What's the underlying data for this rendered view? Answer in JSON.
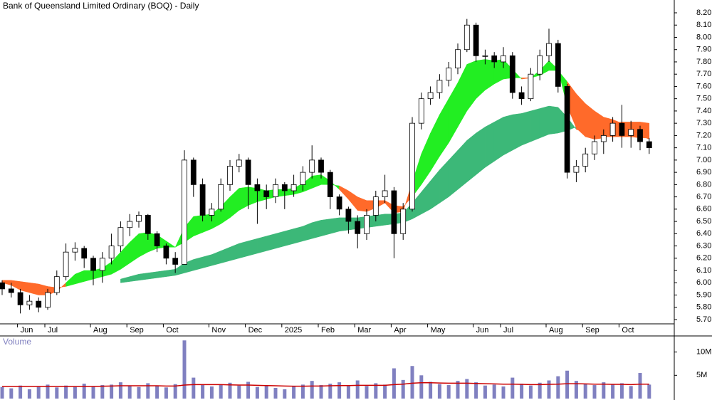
{
  "chart_data": [
    {
      "type": "candlestick",
      "title": "Bank of Queensland Limited Ordinary (BOQ) - Daily",
      "categories": [
        null,
        null,
        "Jun",
        null,
        null,
        "Jul",
        null,
        null,
        null,
        null,
        "Aug",
        null,
        null,
        null,
        "Sep",
        null,
        null,
        null,
        "Oct",
        null,
        null,
        null,
        null,
        "Nov",
        null,
        null,
        null,
        "Dec",
        null,
        null,
        null,
        "2025",
        null,
        null,
        null,
        "Feb",
        null,
        null,
        null,
        "Mar",
        null,
        null,
        null,
        "Apr",
        null,
        null,
        null,
        "May",
        null,
        null,
        null,
        null,
        "Jun",
        null,
        null,
        "Jul",
        null,
        null,
        null,
        null,
        "Aug",
        null,
        null,
        null,
        "Sep",
        null,
        null,
        null,
        "Oct",
        null,
        null,
        null
      ],
      "open": [
        6.0,
        5.95,
        5.92,
        5.82,
        5.85,
        5.8,
        5.92,
        6.05,
        6.25,
        6.28,
        6.2,
        6.1,
        6.2,
        6.3,
        6.45,
        6.5,
        6.55,
        6.4,
        6.3,
        6.2,
        6.15,
        7.0,
        6.8,
        6.55,
        6.6,
        6.8,
        6.95,
        7.0,
        6.8,
        6.75,
        6.7,
        6.8,
        6.75,
        6.8,
        6.9,
        7.0,
        6.9,
        6.7,
        6.6,
        6.5,
        6.4,
        6.55,
        6.7,
        6.75,
        6.4,
        6.6,
        7.3,
        7.5,
        7.55,
        7.65,
        7.75,
        7.9,
        8.1,
        7.85,
        7.85,
        7.8,
        7.85,
        7.55,
        7.5,
        7.7,
        7.85,
        7.95,
        7.6,
        6.9,
        6.95,
        7.05,
        7.15,
        7.2,
        7.3,
        7.2,
        7.25,
        7.15
      ],
      "high": [
        6.02,
        6.0,
        5.95,
        5.9,
        5.88,
        5.95,
        6.1,
        6.32,
        6.33,
        6.3,
        6.22,
        6.25,
        6.4,
        6.5,
        6.56,
        6.58,
        6.56,
        6.42,
        6.32,
        6.25,
        7.08,
        7.02,
        6.85,
        6.65,
        6.85,
        7.0,
        7.05,
        7.02,
        6.85,
        6.8,
        6.85,
        6.82,
        6.88,
        6.95,
        7.12,
        7.02,
        6.92,
        6.72,
        6.62,
        6.55,
        6.6,
        6.75,
        6.88,
        6.78,
        6.65,
        7.35,
        7.55,
        7.6,
        7.7,
        7.8,
        7.95,
        8.15,
        8.12,
        7.9,
        7.88,
        7.92,
        7.88,
        7.6,
        7.75,
        7.9,
        8.07,
        7.98,
        7.62,
        7.0,
        7.1,
        7.2,
        7.25,
        7.35,
        7.45,
        7.32,
        7.28,
        7.18
      ],
      "low": [
        5.9,
        5.88,
        5.75,
        5.78,
        5.76,
        5.78,
        5.9,
        6.02,
        6.18,
        6.12,
        5.98,
        6.0,
        6.15,
        6.25,
        6.38,
        6.45,
        6.35,
        6.25,
        6.15,
        6.08,
        6.15,
        6.7,
        6.5,
        6.5,
        6.58,
        6.75,
        6.9,
        6.6,
        6.48,
        6.6,
        6.65,
        6.6,
        6.7,
        6.75,
        6.85,
        6.85,
        6.6,
        6.55,
        6.4,
        6.28,
        6.35,
        6.5,
        6.65,
        6.2,
        6.35,
        6.58,
        7.25,
        7.45,
        7.5,
        7.6,
        7.7,
        7.88,
        7.8,
        7.78,
        7.75,
        7.75,
        7.5,
        7.45,
        7.48,
        7.65,
        7.8,
        7.55,
        6.85,
        6.82,
        6.9,
        7.0,
        7.05,
        7.15,
        7.1,
        7.1,
        7.08,
        7.05
      ],
      "close": [
        5.95,
        5.92,
        5.82,
        5.85,
        5.8,
        5.92,
        6.05,
        6.25,
        6.28,
        6.2,
        6.1,
        6.2,
        6.3,
        6.45,
        6.5,
        6.55,
        6.4,
        6.3,
        6.2,
        6.15,
        7.0,
        6.8,
        6.55,
        6.6,
        6.8,
        6.95,
        7.0,
        6.8,
        6.75,
        6.7,
        6.8,
        6.75,
        6.8,
        6.9,
        7.0,
        6.9,
        6.7,
        6.6,
        6.5,
        6.4,
        6.55,
        6.7,
        6.75,
        6.4,
        6.6,
        7.3,
        7.5,
        7.55,
        7.65,
        7.75,
        7.9,
        8.1,
        7.85,
        7.85,
        7.8,
        7.85,
        7.55,
        7.5,
        7.7,
        7.85,
        7.95,
        7.6,
        6.9,
        6.95,
        7.05,
        7.15,
        7.2,
        7.3,
        7.2,
        7.25,
        7.15,
        7.1
      ],
      "up_color": "#ffffff",
      "down_color": "#000000",
      "ribbons": [
        {
          "up_color": "#3cb878",
          "down_color": "#ff6a2a",
          "fast": [
            null,
            null,
            null,
            null,
            null,
            null,
            null,
            null,
            null,
            null,
            null,
            null,
            null,
            6.03,
            6.05,
            6.07,
            6.08,
            6.09,
            6.1,
            6.11,
            6.16,
            6.19,
            6.21,
            6.23,
            6.26,
            6.29,
            6.32,
            6.34,
            6.36,
            6.38,
            6.4,
            6.42,
            6.44,
            6.46,
            6.49,
            6.51,
            6.52,
            6.53,
            6.53,
            6.53,
            6.54,
            6.55,
            6.56,
            6.56,
            6.57,
            6.65,
            6.74,
            6.83,
            6.92,
            7.0,
            7.08,
            7.16,
            7.22,
            7.27,
            7.31,
            7.35,
            7.37,
            7.38,
            7.4,
            7.42,
            7.44,
            7.43,
            7.35,
            7.25,
            7.22,
            7.2,
            7.19,
            7.19,
            7.19,
            7.19,
            7.18,
            7.18
          ],
          "slow": [
            null,
            null,
            null,
            null,
            null,
            null,
            null,
            null,
            null,
            null,
            null,
            null,
            null,
            6.0,
            6.01,
            6.02,
            6.03,
            6.04,
            6.05,
            6.06,
            6.08,
            6.1,
            6.12,
            6.14,
            6.16,
            6.18,
            6.2,
            6.22,
            6.24,
            6.26,
            6.28,
            6.3,
            6.32,
            6.34,
            6.36,
            6.38,
            6.4,
            6.42,
            6.43,
            6.44,
            6.45,
            6.46,
            6.47,
            6.48,
            6.49,
            6.52,
            6.56,
            6.6,
            6.65,
            6.7,
            6.76,
            6.82,
            6.88,
            6.94,
            6.99,
            7.04,
            7.08,
            7.12,
            7.15,
            7.18,
            7.21,
            7.22,
            7.24,
            7.27,
            7.28,
            7.29,
            7.3,
            7.3,
            7.31,
            7.31,
            7.31,
            7.3
          ]
        },
        {
          "up_color": "#22ee22",
          "down_color": "#ff6a2a",
          "fast": [
            6.0,
            5.98,
            5.94,
            5.92,
            5.9,
            5.9,
            5.93,
            6.0,
            6.07,
            6.1,
            6.1,
            6.12,
            6.17,
            6.25,
            6.33,
            6.4,
            6.41,
            6.39,
            6.34,
            6.29,
            6.45,
            6.54,
            6.55,
            6.56,
            6.62,
            6.7,
            6.77,
            6.78,
            6.77,
            6.75,
            6.76,
            6.76,
            6.77,
            6.81,
            6.87,
            6.88,
            6.83,
            6.76,
            6.68,
            6.59,
            6.58,
            6.61,
            6.65,
            6.57,
            6.58,
            6.82,
            7.05,
            7.22,
            7.37,
            7.5,
            7.63,
            7.78,
            7.81,
            7.82,
            7.81,
            7.82,
            7.74,
            7.66,
            7.67,
            7.73,
            7.81,
            7.74,
            7.44,
            7.26,
            7.19,
            7.17,
            7.18,
            7.22,
            7.21,
            7.22,
            7.2,
            7.17
          ],
          "slow": [
            6.02,
            6.02,
            6.01,
            6.0,
            5.99,
            5.97,
            5.96,
            5.97,
            5.99,
            6.01,
            6.03,
            6.05,
            6.07,
            6.11,
            6.16,
            6.21,
            6.25,
            6.28,
            6.29,
            6.29,
            6.33,
            6.38,
            6.41,
            6.44,
            6.48,
            6.53,
            6.59,
            6.63,
            6.66,
            6.68,
            6.7,
            6.71,
            6.72,
            6.74,
            6.77,
            6.8,
            6.8,
            6.79,
            6.75,
            6.7,
            6.67,
            6.67,
            6.67,
            6.63,
            6.62,
            6.7,
            6.8,
            6.91,
            7.03,
            7.14,
            7.27,
            7.4,
            7.5,
            7.57,
            7.62,
            7.66,
            7.67,
            7.67,
            7.67,
            7.69,
            7.73,
            7.73,
            7.64,
            7.54,
            7.46,
            7.4,
            7.35,
            7.33,
            7.3,
            7.28,
            7.26,
            7.23
          ]
        }
      ],
      "ylim": [
        5.7,
        8.2
      ],
      "yticks": [
        {
          "value": 5.7,
          "label": "5.70"
        },
        {
          "value": 5.8,
          "label": "5.80"
        },
        {
          "value": 5.9,
          "label": "5.90"
        },
        {
          "value": 6.0,
          "label": "6.00"
        },
        {
          "value": 6.1,
          "label": "6.10"
        },
        {
          "value": 6.2,
          "label": "6.20"
        },
        {
          "value": 6.3,
          "label": "6.30"
        },
        {
          "value": 6.4,
          "label": "6.40"
        },
        {
          "value": 6.5,
          "label": "6.50"
        },
        {
          "value": 6.6,
          "label": "6.60"
        },
        {
          "value": 6.7,
          "label": "6.70"
        },
        {
          "value": 6.8,
          "label": "6.80"
        },
        {
          "value": 6.9,
          "label": "6.90"
        },
        {
          "value": 7.0,
          "label": "7.00"
        },
        {
          "value": 7.1,
          "label": "7.10"
        },
        {
          "value": 7.2,
          "label": "7.20"
        },
        {
          "value": 7.3,
          "label": "7.30"
        },
        {
          "value": 7.4,
          "label": "7.40"
        },
        {
          "value": 7.5,
          "label": "7.50"
        },
        {
          "value": 7.6,
          "label": "7.60"
        },
        {
          "value": 7.7,
          "label": "7.70"
        },
        {
          "value": 7.8,
          "label": "7.80"
        },
        {
          "value": 7.9,
          "label": "7.90"
        },
        {
          "value": 8.0,
          "label": "8.00"
        },
        {
          "value": 8.1,
          "label": "8.10"
        },
        {
          "value": 8.2,
          "label": "8.20"
        }
      ]
    },
    {
      "type": "bar",
      "title": "Volume",
      "color": "#8080c0",
      "ma_color": "#cc0000",
      "values": [
        2500000,
        2200000,
        2800000,
        2000000,
        2600000,
        3000000,
        2400000,
        2800000,
        2500000,
        3200000,
        2600000,
        2900000,
        3000000,
        3500000,
        2700000,
        2500000,
        3300000,
        2800000,
        2400000,
        3100000,
        12500000,
        4500000,
        3000000,
        2600000,
        2900000,
        3400000,
        2800000,
        3600000,
        2500000,
        2700000,
        2300000,
        2000000,
        2600000,
        3000000,
        3800000,
        2900000,
        3200000,
        3500000,
        2800000,
        3900000,
        2700000,
        3300000,
        3000000,
        6500000,
        4000000,
        7000000,
        5000000,
        3600000,
        3100000,
        2900000,
        3800000,
        4200000,
        3500000,
        2800000,
        3000000,
        2600000,
        4500000,
        3200000,
        2800000,
        3400000,
        3900000,
        4800000,
        6000000,
        3800000,
        3200000,
        2900000,
        3500000,
        3000000,
        3300000,
        2700000,
        5500000,
        3000000
      ],
      "ma": [
        2600000,
        2600000,
        2600000,
        2600000,
        2600000,
        2600000,
        2600000,
        2600000,
        2600000,
        2600000,
        2600000,
        2650000,
        2700000,
        2750000,
        2750000,
        2750000,
        2750000,
        2750000,
        2700000,
        2700000,
        2900000,
        3000000,
        3000000,
        3000000,
        3000000,
        2950000,
        2900000,
        2900000,
        2850000,
        2800000,
        2750000,
        2700000,
        2650000,
        2650000,
        2700000,
        2700000,
        2750000,
        2800000,
        2800000,
        2850000,
        2850000,
        2850000,
        2850000,
        3000000,
        3100000,
        3300000,
        3400000,
        3400000,
        3350000,
        3300000,
        3300000,
        3300000,
        3250000,
        3200000,
        3150000,
        3100000,
        3100000,
        3050000,
        3000000,
        3000000,
        3050000,
        3100000,
        3200000,
        3200000,
        3150000,
        3100000,
        3100000,
        3050000,
        3050000,
        3000000,
        3100000,
        3100000
      ],
      "ylim": [
        0,
        13000000
      ],
      "yticks": [
        {
          "value": 5000000,
          "label": "5M"
        },
        {
          "value": 10000000,
          "label": "10M"
        }
      ]
    }
  ]
}
